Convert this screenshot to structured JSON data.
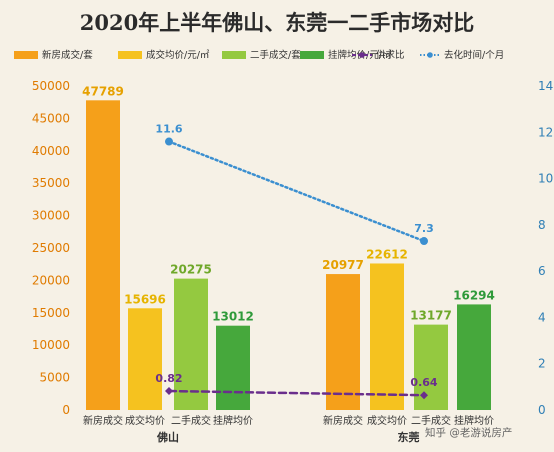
{
  "chart_data": {
    "type": "bar",
    "title": "2020年上半年佛山、东莞一二手市场对比",
    "groups": [
      "佛山",
      "东莞"
    ],
    "categories": [
      "新房成交",
      "成交均价",
      "二手成交",
      "挂牌均价"
    ],
    "bar_series": [
      {
        "name": "新房成交/套",
        "color": "#f5a01a",
        "values": [
          47789,
          20977
        ],
        "axis": "left"
      },
      {
        "name": "成交均价/元/㎡",
        "color": "#f5c21f",
        "values": [
          15696,
          22612
        ],
        "axis": "left"
      },
      {
        "name": "二手成交/套",
        "color": "#94c940",
        "values": [
          20275,
          13177
        ],
        "axis": "left"
      },
      {
        "name": "挂牌均价/元/㎡",
        "color": "#46a83c",
        "values": [
          13012,
          16294
        ],
        "axis": "left"
      }
    ],
    "line_series": [
      {
        "name": "供求比",
        "color": "#6a2e8c",
        "values": [
          0.82,
          0.64
        ],
        "axis": "right",
        "style": "dashed"
      },
      {
        "name": "去化时间/个月",
        "color": "#3b8fd0",
        "values": [
          11.6,
          7.3
        ],
        "axis": "right",
        "style": "dotted"
      }
    ],
    "left_axis": {
      "min": 0,
      "max": 50000,
      "ticks": [
        "0",
        "5000",
        "10000",
        "15000",
        "20000",
        "25000",
        "30000",
        "35000",
        "40000",
        "45000",
        "50000"
      ]
    },
    "right_axis": {
      "min": 0,
      "max": 14,
      "ticks": [
        "0",
        "2",
        "4",
        "6",
        "8",
        "10",
        "12",
        "14"
      ]
    },
    "legend_position": "top",
    "grid": false
  },
  "watermark": "知乎 @老游说房产",
  "colors": {
    "background": "#f6f1e6",
    "left_ticks": "#e07b00",
    "right_ticks": "#2f7fb5"
  }
}
